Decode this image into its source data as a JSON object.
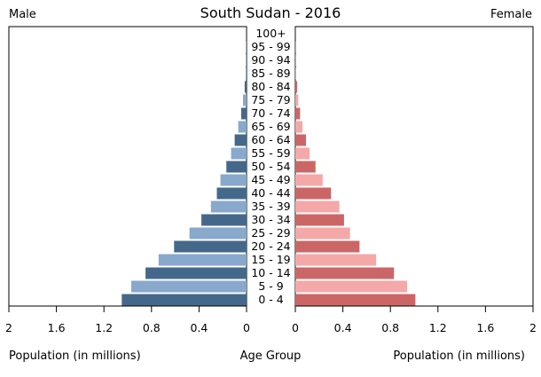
{
  "chart_data": {
    "type": "bar",
    "orientation": "horizontal-mirrored",
    "title": "South Sudan - 2016",
    "left_label": "Male",
    "right_label": "Female",
    "left_axis_label": "Population (in millions)",
    "center_axis_label": "Age Group",
    "right_axis_label": "Population (in millions)",
    "categories": [
      "0 - 4",
      "5 - 9",
      "10 - 14",
      "15 - 19",
      "20 - 24",
      "25 - 29",
      "30 - 34",
      "35 - 39",
      "40 - 44",
      "45 - 49",
      "50 - 54",
      "55 - 59",
      "60 - 64",
      "65 - 69",
      "70 - 74",
      "75 - 79",
      "80 - 84",
      "85 - 89",
      "90 - 94",
      "95 - 99",
      "100+"
    ],
    "series": [
      {
        "name": "Male",
        "values": [
          1.05,
          0.97,
          0.85,
          0.74,
          0.61,
          0.48,
          0.38,
          0.3,
          0.25,
          0.22,
          0.17,
          0.13,
          0.1,
          0.07,
          0.045,
          0.03,
          0.016,
          0.008,
          0.004,
          0.002,
          0.001
        ]
      },
      {
        "name": "Female",
        "values": [
          1.01,
          0.94,
          0.83,
          0.68,
          0.54,
          0.46,
          0.41,
          0.37,
          0.3,
          0.23,
          0.17,
          0.12,
          0.09,
          0.06,
          0.04,
          0.025,
          0.015,
          0.007,
          0.003,
          0.002,
          0.001
        ]
      }
    ],
    "xlim": [
      0,
      2
    ],
    "ticks": [
      2,
      1.6,
      1.2,
      0.8,
      0.4,
      0
    ],
    "tick_labels_left": [
      "2",
      "1.6",
      "1.2",
      "0.8",
      "0.4",
      "0"
    ],
    "tick_labels_right": [
      "0",
      "0.4",
      "0.8",
      "1.2",
      "1.6",
      "2"
    ],
    "colors": {
      "male_dark": "#44688a",
      "male_light": "#88a8cc",
      "female_dark": "#cc6666",
      "female_light": "#f4a8a8"
    },
    "grid": false
  }
}
